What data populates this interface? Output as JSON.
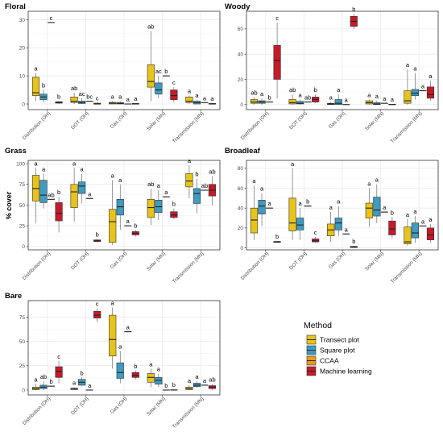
{
  "chart_data": {
    "type": "boxplot",
    "y_label": "% cover",
    "categories": [
      "Distribution (OH)",
      "DOT (OH)",
      "Gas (OH)",
      "Solar (MN)",
      "Transmission (MN)"
    ],
    "legend": {
      "title": "Method",
      "entries": [
        {
          "name": "Transect plot",
          "color": "#e8c31a"
        },
        {
          "name": "Square plot",
          "color": "#3e9bc1"
        },
        {
          "name": "CCAA",
          "color": "#e99a1f"
        },
        {
          "name": "Machine learning",
          "color": "#c41a2a"
        }
      ]
    },
    "panels": [
      {
        "title": "Floral",
        "ylim": [
          -2,
          33
        ],
        "yticks": [
          0,
          10,
          20,
          30
        ],
        "groups": [
          {
            "letters": [
              "a",
              "b",
              "c",
              "b"
            ],
            "boxes": [
              [
                1,
                3,
                4,
                9.5,
                11
              ],
              [
                0.5,
                1.5,
                2.5,
                3.5,
                5
              ],
              [
                29,
                29,
                29,
                29,
                29
              ],
              [
                0,
                0.3,
                0.5,
                0.8,
                1
              ]
            ]
          },
          {
            "letters": [
              "ab",
              "ac",
              "bc",
              "c"
            ],
            "boxes": [
              [
                0,
                0.5,
                1,
                2.5,
                4
              ],
              [
                0,
                0.2,
                0.5,
                1,
                2
              ],
              [
                1,
                1,
                1,
                1,
                1
              ],
              [
                0,
                0,
                0,
                0.3,
                0.5
              ]
            ]
          },
          {
            "letters": [
              "a",
              "a",
              "a",
              "a"
            ],
            "boxes": [
              [
                0,
                0,
                0.3,
                0.6,
                1
              ],
              [
                0,
                0,
                0.2,
                0.5,
                1
              ],
              [
                0,
                0,
                0,
                0,
                0
              ],
              [
                0,
                0,
                0,
                0.2,
                0.3
              ]
            ]
          },
          {
            "letters": [
              "ab",
              "ac",
              "b",
              "c"
            ],
            "boxes": [
              [
                1,
                6,
                8,
                14,
                26
              ],
              [
                2,
                3.5,
                5,
                7.5,
                10
              ],
              [
                10,
                10,
                10,
                10,
                10
              ],
              [
                0.5,
                1.5,
                3,
                5,
                6
              ]
            ]
          },
          {
            "letters": [
              "a",
              "a",
              "a",
              "a"
            ],
            "boxes": [
              [
                0,
                0.5,
                1,
                2.5,
                3
              ],
              [
                0,
                0,
                0.5,
                1,
                1.5
              ],
              [
                0.5,
                0.5,
                0.5,
                0.5,
                0.5
              ],
              [
                0,
                0,
                0,
                0.2,
                0.3
              ]
            ]
          }
        ]
      },
      {
        "title": "Woody",
        "ylim": [
          -4,
          74
        ],
        "yticks": [
          0,
          20,
          40,
          60
        ],
        "groups": [
          {
            "letters": [
              "ab",
              "a",
              "b",
              "c"
            ],
            "boxes": [
              [
                0,
                1,
                2,
                4,
                6
              ],
              [
                0,
                1,
                2,
                3,
                5
              ],
              [
                2,
                2,
                2,
                2,
                2
              ],
              [
                5,
                20,
                35,
                47,
                65
              ]
            ]
          },
          {
            "letters": [
              "ab",
              "a",
              "ab",
              "b"
            ],
            "boxes": [
              [
                0,
                0.5,
                1.5,
                4,
                8
              ],
              [
                0,
                0.5,
                1,
                2.5,
                4
              ],
              [
                2,
                2,
                2,
                2,
                2
              ],
              [
                1,
                2,
                4,
                6,
                8
              ]
            ]
          },
          {
            "letters": [
              "a",
              "a",
              "a",
              "b"
            ],
            "boxes": [
              [
                0,
                0,
                0.5,
                1,
                2
              ],
              [
                0,
                0,
                1,
                4,
                8
              ],
              [
                0,
                0,
                0,
                0,
                0
              ],
              [
                60,
                62,
                66,
                70,
                72
              ]
            ]
          },
          {
            "letters": [
              "a",
              "a",
              "a",
              "a"
            ],
            "boxes": [
              [
                0,
                0.5,
                1.5,
                3,
                4
              ],
              [
                0,
                0,
                0.5,
                1.5,
                3
              ],
              [
                1,
                1,
                1,
                1,
                1
              ],
              [
                0,
                0,
                0,
                0.3,
                0.5
              ]
            ]
          },
          {
            "letters": [
              "a",
              "a",
              "a",
              "a"
            ],
            "boxes": [
              [
                0,
                1,
                3,
                11,
                28
              ],
              [
                4,
                7,
                9,
                12,
                25
              ],
              [
                11,
                11,
                11,
                11,
                11
              ],
              [
                3,
                5,
                8,
                14,
                19
              ]
            ]
          }
        ]
      },
      {
        "title": "Grass",
        "ylim": [
          -4,
          104
        ],
        "yticks": [
          0,
          25,
          50,
          75,
          100
        ],
        "groups": [
          {
            "letters": [
              "a",
              "a",
              "ab",
              "b"
            ],
            "boxes": [
              [
                28,
                55,
                70,
                86,
                95
              ],
              [
                46,
                53,
                62,
                80,
                88
              ],
              [
                57,
                57,
                57,
                57,
                57
              ],
              [
                17,
                31,
                40,
                53,
                60
              ]
            ]
          },
          {
            "letters": [
              "a",
              "a",
              "a",
              "b"
            ],
            "boxes": [
              [
                30,
                47,
                66,
                75,
                95
              ],
              [
                52,
                64,
                73,
                78,
                88
              ],
              [
                58,
                58,
                58,
                58,
                58
              ],
              [
                5,
                6,
                7,
                8,
                9
              ]
            ]
          },
          {
            "letters": [
              "a",
              "a",
              "a",
              "b"
            ],
            "boxes": [
              [
                2,
                5,
                30,
                45,
                80
              ],
              [
                20,
                38,
                48,
                57,
                75
              ],
              [
                25,
                25,
                25,
                25,
                25
              ],
              [
                12,
                14,
                16,
                18,
                20
              ]
            ]
          },
          {
            "letters": [
              "ab",
              "a",
              "a",
              "b"
            ],
            "boxes": [
              [
                26,
                35,
                47,
                57,
                70
              ],
              [
                32,
                41,
                48,
                56,
                68
              ],
              [
                60,
                60,
                60,
                60,
                60
              ],
              [
                33,
                35,
                38,
                42,
                46
              ]
            ]
          },
          {
            "letters": [
              "a",
              "b",
              "ab",
              "ab"
            ],
            "boxes": [
              [
                58,
                72,
                79,
                88,
                98
              ],
              [
                40,
                52,
                64,
                70,
                82
              ],
              [
                68,
                68,
                68,
                68,
                68
              ],
              [
                50,
                61,
                68,
                75,
                85
              ]
            ]
          }
        ]
      },
      {
        "title": "Broadleaf",
        "ylim": [
          -2,
          88
        ],
        "yticks": [
          0,
          20,
          40,
          60,
          80
        ],
        "groups": [
          {
            "letters": [
              "a",
              "a",
              "a",
              "b"
            ],
            "boxes": [
              [
                8,
                15,
                28,
                40,
                63
              ],
              [
                22,
                34,
                42,
                48,
                55
              ],
              [
                40,
                40,
                40,
                40,
                40
              ],
              [
                5,
                5.5,
                6,
                6.5,
                7
              ]
            ]
          },
          {
            "letters": [
              "a",
              "a",
              "b",
              "c"
            ],
            "boxes": [
              [
                8,
                17,
                25,
                50,
                80
              ],
              [
                8,
                18,
                23,
                30,
                40
              ],
              [
                42,
                42,
                42,
                42,
                42
              ],
              [
                5,
                6,
                7,
                9,
                11
              ]
            ]
          },
          {
            "letters": [
              "a",
              "a",
              "a",
              "b"
            ],
            "boxes": [
              [
                6,
                12,
                18,
                24,
                36
              ],
              [
                12,
                18,
                25,
                30,
                42
              ],
              [
                14,
                14,
                14,
                14,
                14
              ],
              [
                0,
                0.3,
                1,
                1.5,
                2
              ]
            ]
          },
          {
            "letters": [
              "a",
              "a",
              "a",
              "b"
            ],
            "boxes": [
              [
                21,
                30,
                40,
                45,
                60
              ],
              [
                25,
                32,
                38,
                51,
                64
              ],
              [
                36,
                36,
                36,
                36,
                36
              ],
              [
                10,
                13,
                19,
                27,
                31
              ]
            ]
          },
          {
            "letters": [
              "a",
              "a",
              "a",
              "a"
            ],
            "boxes": [
              [
                2,
                4,
                6,
                21,
                29
              ],
              [
                5,
                10,
                15,
                25,
                32
              ],
              [
                22,
                22,
                22,
                22,
                22
              ],
              [
                5,
                8,
                13,
                20,
                24
              ]
            ]
          }
        ]
      },
      {
        "title": "Bare",
        "ylim": [
          -5,
          92
        ],
        "yticks": [
          0,
          25,
          50,
          75
        ],
        "groups": [
          {
            "letters": [
              "a",
              "ab",
              "b",
              "c"
            ],
            "boxes": [
              [
                0,
                0.5,
                1.5,
                3,
                6
              ],
              [
                0,
                1.5,
                3,
                5,
                9
              ],
              [
                4,
                4,
                4,
                4,
                4
              ],
              [
                7,
                13,
                19,
                24,
                30
              ]
            ]
          },
          {
            "letters": [
              "a",
              "b",
              "a",
              "c"
            ],
            "boxes": [
              [
                0,
                0.5,
                1,
                2,
                3
              ],
              [
                4,
                5,
                8,
                11,
                13
              ],
              [
                0,
                0,
                0,
                0,
                0
              ],
              [
                70,
                74,
                77,
                81,
                84
              ]
            ]
          },
          {
            "letters": [
              "a",
              "a",
              "a",
              "b"
            ],
            "boxes": [
              [
                22,
                35,
                52,
                77,
                85
              ],
              [
                7,
                12,
                18,
                28,
                40
              ],
              [
                60,
                60,
                60,
                60,
                60
              ],
              [
                11,
                13,
                15,
                18,
                20
              ]
            ]
          },
          {
            "letters": [
              "a",
              "a",
              "b",
              "b"
            ],
            "boxes": [
              [
                3,
                8,
                13,
                17,
                22
              ],
              [
                3,
                6,
                10,
                13,
                17
              ],
              [
                0,
                0,
                0,
                0,
                0
              ],
              [
                0,
                0,
                0,
                0.3,
                0.6
              ]
            ]
          },
          {
            "letters": [
              "a",
              "a",
              "a",
              "ab"
            ],
            "boxes": [
              [
                0,
                0.5,
                1.5,
                3,
                5
              ],
              [
                2,
                3.5,
                5,
                7,
                9
              ],
              [
                5,
                5,
                5,
                5,
                5
              ],
              [
                0,
                1.5,
                3,
                4.5,
                6
              ]
            ]
          }
        ]
      }
    ]
  }
}
